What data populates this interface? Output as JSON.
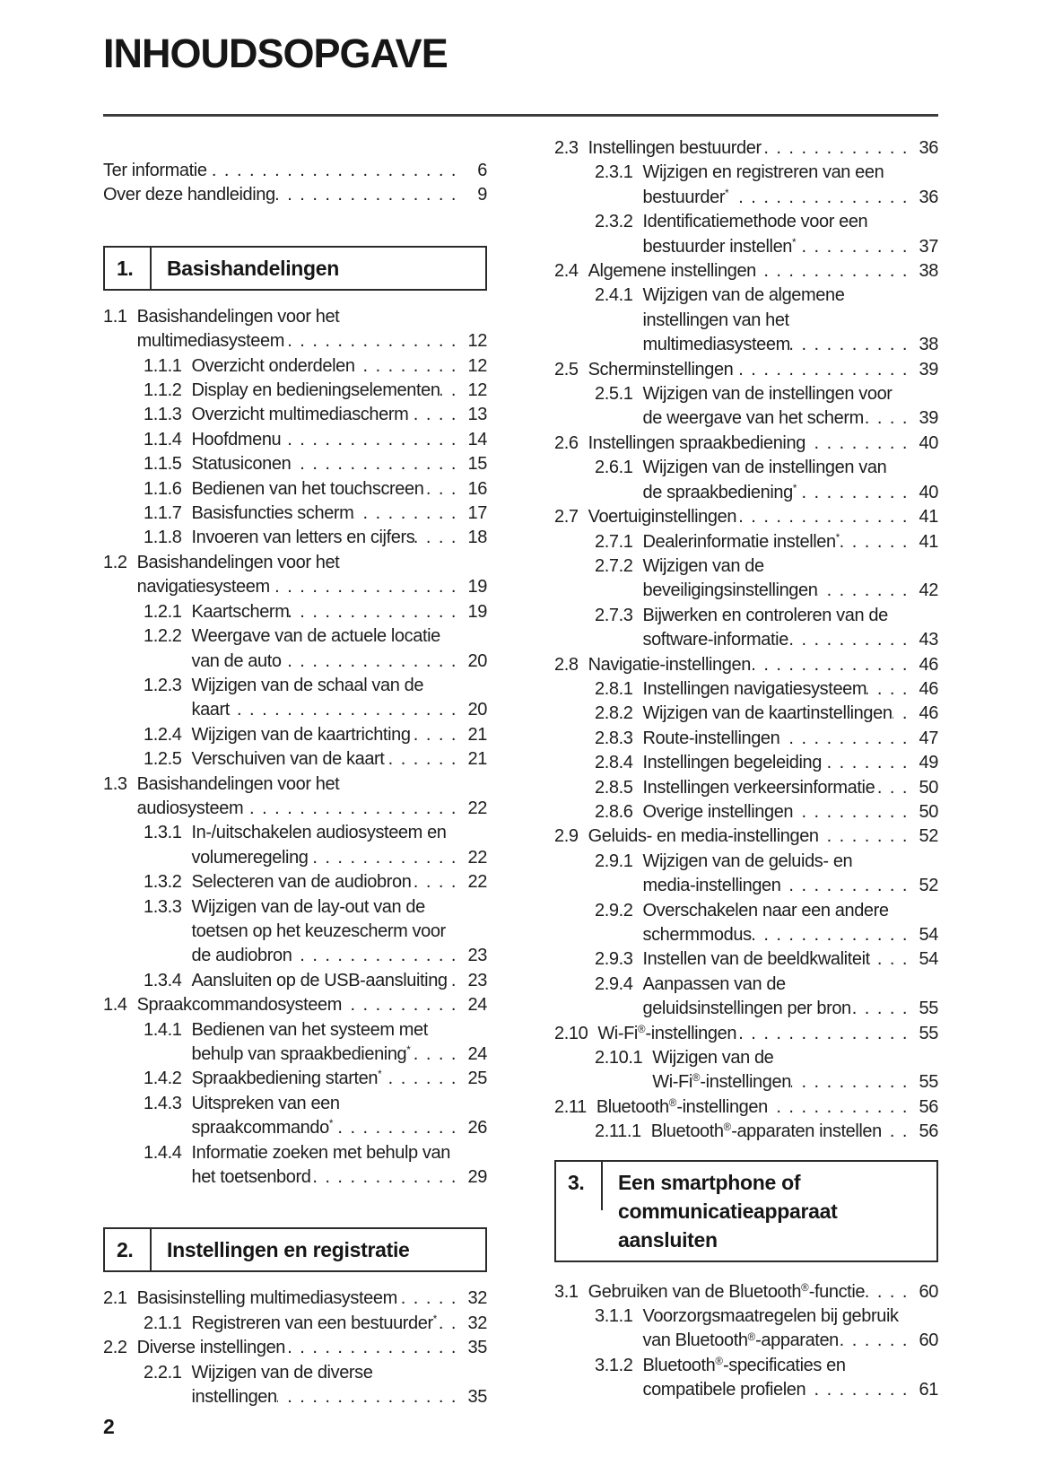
{
  "page": {
    "title": "INHOUDSOPGAVE",
    "page_number": "2"
  },
  "columns": {
    "left": [
      {
        "type": "entries",
        "items": [
          {
            "level": 0,
            "lines": [
              "Ter informatie"
            ],
            "page": "6"
          },
          {
            "level": 0,
            "lines": [
              "Over deze handleiding"
            ],
            "page": "9"
          }
        ]
      },
      {
        "type": "section",
        "num": "1.",
        "title_lines": [
          "Basishandelingen"
        ]
      },
      {
        "type": "entries",
        "items": [
          {
            "level": 1,
            "num": "1.1",
            "lines": [
              "Basishandelingen voor het",
              "multimediasysteem"
            ],
            "page": "12"
          },
          {
            "level": 2,
            "num": "1.1.1",
            "lines": [
              "Overzicht onderdelen"
            ],
            "page": "12"
          },
          {
            "level": 2,
            "num": "1.1.2",
            "lines": [
              "Display en bedieningselementen"
            ],
            "page": "12"
          },
          {
            "level": 2,
            "num": "1.1.3",
            "lines": [
              "Overzicht multimediascherm"
            ],
            "page": "13"
          },
          {
            "level": 2,
            "num": "1.1.4",
            "lines": [
              "Hoofdmenu"
            ],
            "page": "14"
          },
          {
            "level": 2,
            "num": "1.1.5",
            "lines": [
              "Statusiconen"
            ],
            "page": "15"
          },
          {
            "level": 2,
            "num": "1.1.6",
            "lines": [
              "Bedienen van het touchscreen"
            ],
            "page": "16"
          },
          {
            "level": 2,
            "num": "1.1.7",
            "lines": [
              "Basisfuncties scherm"
            ],
            "page": "17"
          },
          {
            "level": 2,
            "num": "1.1.8",
            "lines": [
              "Invoeren van letters en cijfers"
            ],
            "page": "18"
          },
          {
            "level": 1,
            "num": "1.2",
            "lines": [
              "Basishandelingen voor het",
              "navigatiesysteem"
            ],
            "page": "19"
          },
          {
            "level": 2,
            "num": "1.2.1",
            "lines": [
              "Kaartscherm"
            ],
            "page": "19"
          },
          {
            "level": 2,
            "num": "1.2.2",
            "lines": [
              "Weergave van de actuele locatie",
              "van de auto"
            ],
            "page": "20"
          },
          {
            "level": 2,
            "num": "1.2.3",
            "lines": [
              "Wijzigen van de schaal van de",
              "kaart"
            ],
            "page": "20"
          },
          {
            "level": 2,
            "num": "1.2.4",
            "lines": [
              "Wijzigen van de kaartrichting"
            ],
            "page": "21"
          },
          {
            "level": 2,
            "num": "1.2.5",
            "lines": [
              "Verschuiven van de kaart"
            ],
            "page": "21"
          },
          {
            "level": 1,
            "num": "1.3",
            "lines": [
              "Basishandelingen voor het",
              "audiosysteem"
            ],
            "page": "22"
          },
          {
            "level": 2,
            "num": "1.3.1",
            "lines": [
              "In-/uitschakelen audiosysteem en",
              "volumeregeling"
            ],
            "page": "22"
          },
          {
            "level": 2,
            "num": "1.3.2",
            "lines": [
              "Selecteren van de audiobron"
            ],
            "page": "22"
          },
          {
            "level": 2,
            "num": "1.3.3",
            "lines": [
              "Wijzigen van de lay-out van de",
              "toetsen op het keuzescherm voor",
              "de audiobron"
            ],
            "page": "23"
          },
          {
            "level": 2,
            "num": "1.3.4",
            "lines": [
              "Aansluiten op de USB-aansluiting"
            ],
            "page": "23"
          },
          {
            "level": 1,
            "num": "1.4",
            "lines": [
              "Spraakcommandosysteem"
            ],
            "page": "24"
          },
          {
            "level": 2,
            "num": "1.4.1",
            "lines": [
              "Bedienen van het systeem met",
              "behulp van spraakbediening*"
            ],
            "page": "24"
          },
          {
            "level": 2,
            "num": "1.4.2",
            "lines": [
              "Spraakbediening starten*"
            ],
            "page": "25"
          },
          {
            "level": 2,
            "num": "1.4.3",
            "lines": [
              "Uitspreken van een",
              "spraakcommando*"
            ],
            "page": "26"
          },
          {
            "level": 2,
            "num": "1.4.4",
            "lines": [
              "Informatie zoeken met behulp van",
              "het toetsenbord"
            ],
            "page": "29"
          }
        ]
      },
      {
        "type": "section",
        "num": "2.",
        "title_lines": [
          "Instellingen en registratie"
        ]
      },
      {
        "type": "entries",
        "items": [
          {
            "level": 1,
            "num": "2.1",
            "lines": [
              "Basisinstelling multimediasysteem"
            ],
            "page": "32"
          },
          {
            "level": 2,
            "num": "2.1.1",
            "lines": [
              "Registreren van een bestuurder*"
            ],
            "page": "32"
          },
          {
            "level": 1,
            "num": "2.2",
            "lines": [
              "Diverse instellingen"
            ],
            "page": "35"
          },
          {
            "level": 2,
            "num": "2.2.1",
            "lines": [
              "Wijzigen van de diverse",
              "instellingen"
            ],
            "page": "35"
          }
        ]
      }
    ],
    "right": [
      {
        "type": "entries",
        "items": [
          {
            "level": 1,
            "num": "2.3",
            "lines": [
              "Instellingen bestuurder"
            ],
            "page": "36"
          },
          {
            "level": 2,
            "num": "2.3.1",
            "lines": [
              "Wijzigen en registreren van een",
              "bestuurder*"
            ],
            "page": "36"
          },
          {
            "level": 2,
            "num": "2.3.2",
            "lines": [
              "Identificatiemethode voor een",
              "bestuurder instellen*"
            ],
            "page": "37"
          },
          {
            "level": 1,
            "num": "2.4",
            "lines": [
              "Algemene instellingen"
            ],
            "page": "38"
          },
          {
            "level": 2,
            "num": "2.4.1",
            "lines": [
              "Wijzigen van de algemene",
              "instellingen van het",
              "multimediasysteem"
            ],
            "page": "38"
          },
          {
            "level": 1,
            "num": "2.5",
            "lines": [
              "Scherminstellingen"
            ],
            "page": "39"
          },
          {
            "level": 2,
            "num": "2.5.1",
            "lines": [
              "Wijzigen van de instellingen voor",
              "de weergave van het scherm"
            ],
            "page": "39"
          },
          {
            "level": 1,
            "num": "2.6",
            "lines": [
              "Instellingen spraakbediening"
            ],
            "page": "40"
          },
          {
            "level": 2,
            "num": "2.6.1",
            "lines": [
              "Wijzigen van de instellingen van",
              "de spraakbediening*"
            ],
            "page": "40"
          },
          {
            "level": 1,
            "num": "2.7",
            "lines": [
              "Voertuiginstellingen"
            ],
            "page": "41"
          },
          {
            "level": 2,
            "num": "2.7.1",
            "lines": [
              "Dealerinformatie instellen*"
            ],
            "page": "41"
          },
          {
            "level": 2,
            "num": "2.7.2",
            "lines": [
              "Wijzigen van de",
              "beveiligingsinstellingen"
            ],
            "page": "42"
          },
          {
            "level": 2,
            "num": "2.7.3",
            "lines": [
              "Bijwerken en controleren van de",
              "software-informatie"
            ],
            "page": "43"
          },
          {
            "level": 1,
            "num": "2.8",
            "lines": [
              "Navigatie-instellingen"
            ],
            "page": "46"
          },
          {
            "level": 2,
            "num": "2.8.1",
            "lines": [
              "Instellingen navigatiesysteem"
            ],
            "page": "46"
          },
          {
            "level": 2,
            "num": "2.8.2",
            "lines": [
              "Wijzigen van de kaartinstellingen"
            ],
            "page": "46"
          },
          {
            "level": 2,
            "num": "2.8.3",
            "lines": [
              "Route-instellingen"
            ],
            "page": "47"
          },
          {
            "level": 2,
            "num": "2.8.4",
            "lines": [
              "Instellingen begeleiding"
            ],
            "page": "49"
          },
          {
            "level": 2,
            "num": "2.8.5",
            "lines": [
              "Instellingen verkeersinformatie"
            ],
            "page": "50"
          },
          {
            "level": 2,
            "num": "2.8.6",
            "lines": [
              "Overige instellingen"
            ],
            "page": "50"
          },
          {
            "level": 1,
            "num": "2.9",
            "lines": [
              "Geluids- en media-instellingen"
            ],
            "page": "52"
          },
          {
            "level": 2,
            "num": "2.9.1",
            "lines": [
              "Wijzigen van de geluids- en",
              "media-instellingen"
            ],
            "page": "52"
          },
          {
            "level": 2,
            "num": "2.9.2",
            "lines": [
              "Overschakelen naar een andere",
              "schermmodus"
            ],
            "page": "54"
          },
          {
            "level": 2,
            "num": "2.9.3",
            "lines": [
              "Instellen van de beeldkwaliteit"
            ],
            "page": "54"
          },
          {
            "level": 2,
            "num": "2.9.4",
            "lines": [
              "Aanpassen van de",
              "geluidsinstellingen per bron"
            ],
            "page": "55"
          },
          {
            "level": 1,
            "num": "2.10",
            "lines": [
              "Wi-Fi®-instellingen"
            ],
            "page": "55"
          },
          {
            "level": 2,
            "num": "2.10.1",
            "lines": [
              "Wijzigen van de",
              "Wi-Fi®-instellingen"
            ],
            "page": "55"
          },
          {
            "level": 1,
            "num": "2.11",
            "lines": [
              "Bluetooth®-instellingen"
            ],
            "page": "56"
          },
          {
            "level": 2,
            "num": "2.11.1",
            "lines": [
              "Bluetooth®-apparaten instellen"
            ],
            "page": "56"
          }
        ]
      },
      {
        "type": "section",
        "num": "3.",
        "title_lines": [
          "Een smartphone of",
          "communicatieapparaat",
          "aansluiten"
        ]
      },
      {
        "type": "entries",
        "items": [
          {
            "level": 1,
            "num": "3.1",
            "lines": [
              "Gebruiken van de Bluetooth®-functie"
            ],
            "page": "60"
          },
          {
            "level": 2,
            "num": "3.1.1",
            "lines": [
              "Voorzorgsmaatregelen bij gebruik",
              "van Bluetooth®-apparaten"
            ],
            "page": "60"
          },
          {
            "level": 2,
            "num": "3.1.2",
            "lines": [
              "Bluetooth®-specificaties en",
              "compatibele profielen"
            ],
            "page": "61"
          }
        ]
      }
    ]
  }
}
